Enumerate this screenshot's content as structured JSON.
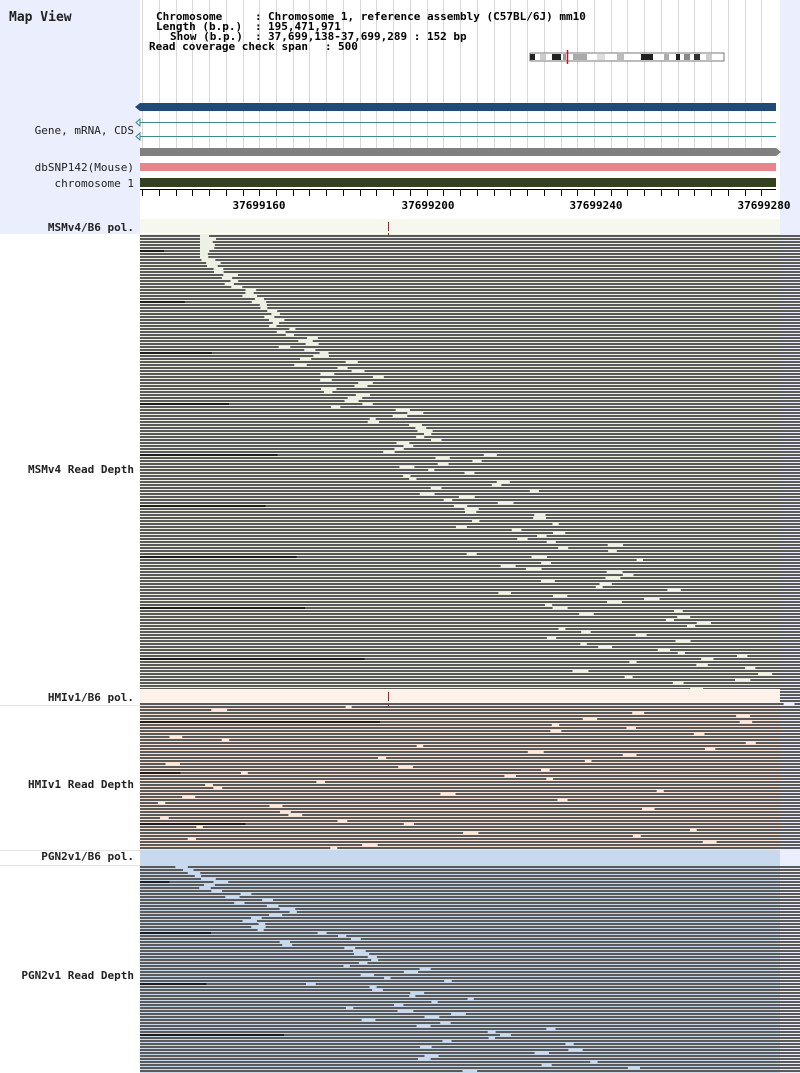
{
  "app_title": "Map View",
  "info": {
    "chromosome_key": "Chromosome",
    "chromosome_value": "Chromosome 1, reference assembly (C57BL/6J) mm10",
    "length_key": "Length (b.p.)",
    "length_value": "195,471,971",
    "show_key": "Show (b.p.)",
    "show_value": "37,699,138-37,699,289 : 152 bp",
    "coverage_key": "Read coverage check span",
    "coverage_value": "500",
    "sep": ":"
  },
  "tracks": {
    "gene_label": "Gene, mRNA, CDS",
    "snp_label": "dbSNP142(Mouse)",
    "chrom_label": "chromosome 1"
  },
  "axis": {
    "ticks": [
      "37699160",
      "37699200",
      "37699240",
      "37699280"
    ],
    "tick_values": [
      37699160,
      37699200,
      37699240,
      37699280
    ],
    "start": 37699138,
    "end": 37699289
  },
  "panels": [
    {
      "pol_label": "MSMv4/B6 pol.",
      "depth_label": "MSMv4 Read Depth",
      "bg_color": "#edf1e4",
      "pol_bg_color": "#f6f8f0"
    },
    {
      "pol_label": "HMIv1/B6 pol.",
      "depth_label": "HMIv1 Read Depth",
      "bg_color": "#fbe6d9",
      "pol_bg_color": "#fdf2ea"
    },
    {
      "pol_label": "PGN2v1/B6 pol.",
      "depth_label": "PGN2v1 Read Depth",
      "bg_color": "#c8d9ee",
      "pol_bg_color": "#c8d9ee"
    }
  ],
  "colors": {
    "header_bg": "#ebeefc",
    "gene_track": "#1f4a7a",
    "gene_line": "#3b8a88",
    "gray_track": "#808080",
    "snp_track": "#e8848c",
    "chrom_track": "#33421c",
    "read": "#5a5a5a",
    "read_dark": "#1e1e1e",
    "snp_marker": "#c0141e"
  }
}
